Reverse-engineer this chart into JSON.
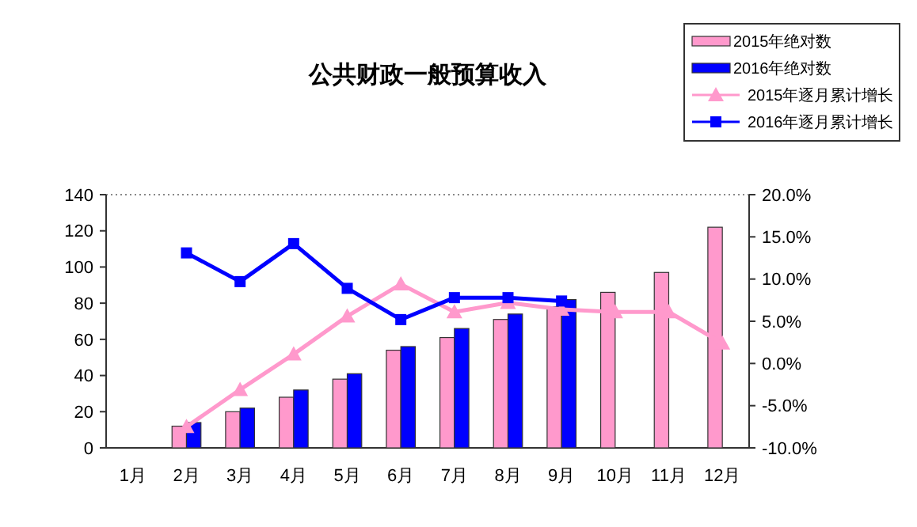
{
  "chart_data": {
    "type": "bar",
    "title": "公共财政一般预算收入",
    "categories": [
      "1月",
      "2月",
      "3月",
      "4月",
      "5月",
      "6月",
      "7月",
      "8月",
      "9月",
      "10月",
      "11月",
      "12月"
    ],
    "series": [
      {
        "name": "2015年绝对数",
        "color": "#ff99cc",
        "values": [
          null,
          12,
          20,
          28,
          38,
          54,
          61,
          71,
          78,
          86,
          97,
          122
        ]
      },
      {
        "name": "2016年绝对数",
        "color": "#0000ff",
        "values": [
          null,
          14,
          22,
          32,
          41,
          56,
          66,
          74,
          82,
          null,
          null,
          null
        ]
      },
      {
        "name": "2015年逐月累计增长",
        "type": "line",
        "axis": "y2",
        "marker": "triangle",
        "color": "#ff99cc",
        "values": [
          null,
          -7.5,
          -3.1,
          1.1,
          5.6,
          9.4,
          6.1,
          7.2,
          6.4,
          6.1,
          6.1,
          2.4
        ]
      },
      {
        "name": "2016年逐月累计增长",
        "type": "line",
        "axis": "y2",
        "marker": "square",
        "color": "#0000ff",
        "values": [
          null,
          13.1,
          9.7,
          14.2,
          8.9,
          5.2,
          7.8,
          7.8,
          7.4,
          null,
          null,
          null
        ]
      }
    ],
    "ylim": [
      0,
      140
    ],
    "yticks": [
      0,
      20,
      40,
      60,
      80,
      100,
      120,
      140
    ],
    "y2lim": [
      -10,
      20
    ],
    "y2ticks": [
      {
        "value": -10,
        "label": "-10.0%"
      },
      {
        "value": -5,
        "label": "-5.0%"
      },
      {
        "value": 0,
        "label": "0.0%"
      },
      {
        "value": 5,
        "label": "5.0%"
      },
      {
        "value": 10,
        "label": "10.0%"
      },
      {
        "value": 15,
        "label": "15.0%"
      },
      {
        "value": 20,
        "label": "20.0%"
      }
    ],
    "legend": "top right",
    "grid": false
  }
}
